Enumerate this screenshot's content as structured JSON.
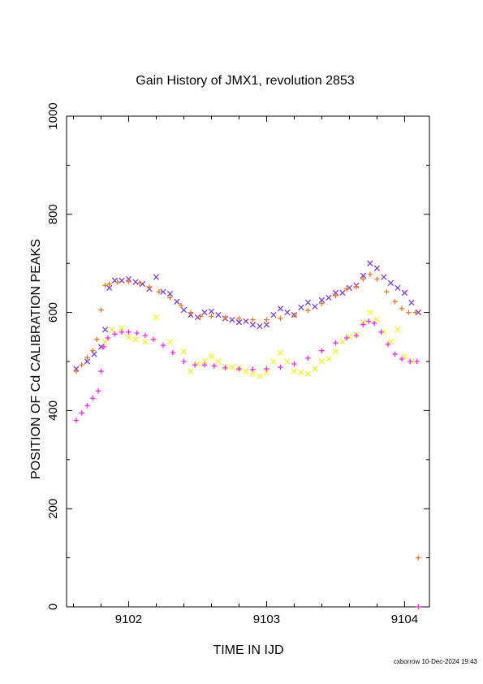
{
  "chart_data": {
    "type": "scatter",
    "title": "Gain History of JMX1, revolution 2853",
    "xlabel": "TIME IN IJD",
    "ylabel": "POSITION OF Cd CALIBRATION PEAKS",
    "xlim": [
      9101.55,
      9104.18
    ],
    "ylim": [
      0,
      1000
    ],
    "xticks": [
      9102,
      9103,
      9104
    ],
    "xtick_labels": [
      "9102",
      "9103",
      "9104"
    ],
    "yticks": [
      0,
      200,
      400,
      600,
      800,
      1000
    ],
    "ytick_labels": [
      "0",
      "200",
      "400",
      "600",
      "800",
      "1000"
    ],
    "grid": false,
    "legend": "none",
    "footer": "cxborrow 10-Dec-2024 19:43",
    "series": [
      {
        "marker": "x",
        "color": "#7a3ce0",
        "x": [
          9101.62,
          9101.7,
          9101.75,
          9101.8,
          9101.83,
          9101.86,
          9101.9,
          9101.95,
          9102.0,
          9102.05,
          9102.1,
          9102.15,
          9102.2,
          9102.25,
          9102.3,
          9102.35,
          9102.4,
          9102.45,
          9102.5,
          9102.55,
          9102.6,
          9102.65,
          9102.7,
          9102.75,
          9102.8,
          9102.85,
          9102.9,
          9102.95,
          9103.0,
          9103.05,
          9103.1,
          9103.15,
          9103.2,
          9103.25,
          9103.3,
          9103.35,
          9103.4,
          9103.45,
          9103.5,
          9103.55,
          9103.6,
          9103.65,
          9103.7,
          9103.75,
          9103.8,
          9103.85,
          9103.9,
          9103.95,
          9104.0,
          9104.05,
          9104.1
        ],
        "y": [
          485,
          500,
          515,
          530,
          565,
          650,
          665,
          665,
          668,
          662,
          658,
          648,
          672,
          642,
          638,
          622,
          605,
          595,
          590,
          600,
          602,
          595,
          588,
          585,
          580,
          582,
          575,
          572,
          575,
          595,
          608,
          600,
          595,
          610,
          620,
          612,
          625,
          630,
          640,
          640,
          650,
          655,
          675,
          700,
          690,
          672,
          660,
          650,
          640,
          620,
          600
        ]
      },
      {
        "marker": "plus",
        "color": "#f07818",
        "x": [
          9101.62,
          9101.66,
          9101.7,
          9101.74,
          9101.77,
          9101.8,
          9101.83,
          9101.86,
          9101.92,
          9102.0,
          9102.08,
          9102.15,
          9102.22,
          9102.3,
          9102.38,
          9102.45,
          9102.52,
          9102.6,
          9102.7,
          9102.8,
          9102.9,
          9103.0,
          9103.1,
          9103.2,
          9103.3,
          9103.4,
          9103.5,
          9103.58,
          9103.65,
          9103.7,
          9103.75,
          9103.8,
          9103.87,
          9103.93,
          9103.98,
          9104.03,
          9104.08,
          9104.1
        ],
        "y": [
          480,
          493,
          508,
          522,
          545,
          605,
          655,
          658,
          662,
          663,
          660,
          652,
          642,
          630,
          614,
          600,
          592,
          592,
          590,
          588,
          585,
          585,
          588,
          594,
          604,
          618,
          634,
          648,
          652,
          668,
          678,
          668,
          642,
          622,
          608,
          600,
          600,
          100
        ]
      },
      {
        "marker": "x",
        "color": "#f2f21e",
        "x": [
          9101.83,
          9101.88,
          9101.95,
          9102.0,
          9102.05,
          9102.12,
          9102.2,
          9102.3,
          9102.4,
          9102.45,
          9102.5,
          9102.55,
          9102.6,
          9102.65,
          9102.7,
          9102.75,
          9102.8,
          9102.85,
          9102.9,
          9102.95,
          9103.0,
          9103.05,
          9103.1,
          9103.15,
          9103.2,
          9103.25,
          9103.3,
          9103.35,
          9103.4,
          9103.45,
          9103.5,
          9103.55,
          9103.6,
          9103.65,
          9103.7,
          9103.75,
          9103.8,
          9103.85,
          9103.9,
          9103.95,
          9104.0,
          9104.05
        ],
        "y": [
          540,
          565,
          568,
          550,
          545,
          540,
          590,
          540,
          520,
          480,
          495,
          500,
          510,
          500,
          490,
          488,
          485,
          480,
          475,
          470,
          478,
          500,
          518,
          500,
          480,
          478,
          475,
          485,
          500,
          505,
          520,
          540,
          550,
          555,
          580,
          600,
          585,
          560,
          540,
          565,
          510,
          500
        ]
      },
      {
        "marker": "plus",
        "color": "#ff20ff",
        "x": [
          9101.62,
          9101.66,
          9101.7,
          9101.74,
          9101.78,
          9101.8,
          9101.82,
          9101.85,
          9101.9,
          9101.95,
          9102.0,
          9102.06,
          9102.12,
          9102.18,
          9102.25,
          9102.32,
          9102.4,
          9102.48,
          9102.55,
          9102.62,
          9102.7,
          9102.8,
          9102.9,
          9103.0,
          9103.1,
          9103.2,
          9103.3,
          9103.4,
          9103.5,
          9103.58,
          9103.65,
          9103.7,
          9103.74,
          9103.78,
          9103.83,
          9103.88,
          9103.93,
          9103.98,
          9104.04,
          9104.09,
          9104.1
        ],
        "y": [
          380,
          395,
          410,
          425,
          440,
          480,
          530,
          548,
          556,
          560,
          560,
          558,
          553,
          545,
          533,
          518,
          500,
          493,
          493,
          491,
          487,
          485,
          484,
          485,
          488,
          495,
          507,
          522,
          538,
          548,
          553,
          575,
          582,
          578,
          560,
          535,
          515,
          505,
          500,
          500,
          0
        ]
      }
    ]
  }
}
